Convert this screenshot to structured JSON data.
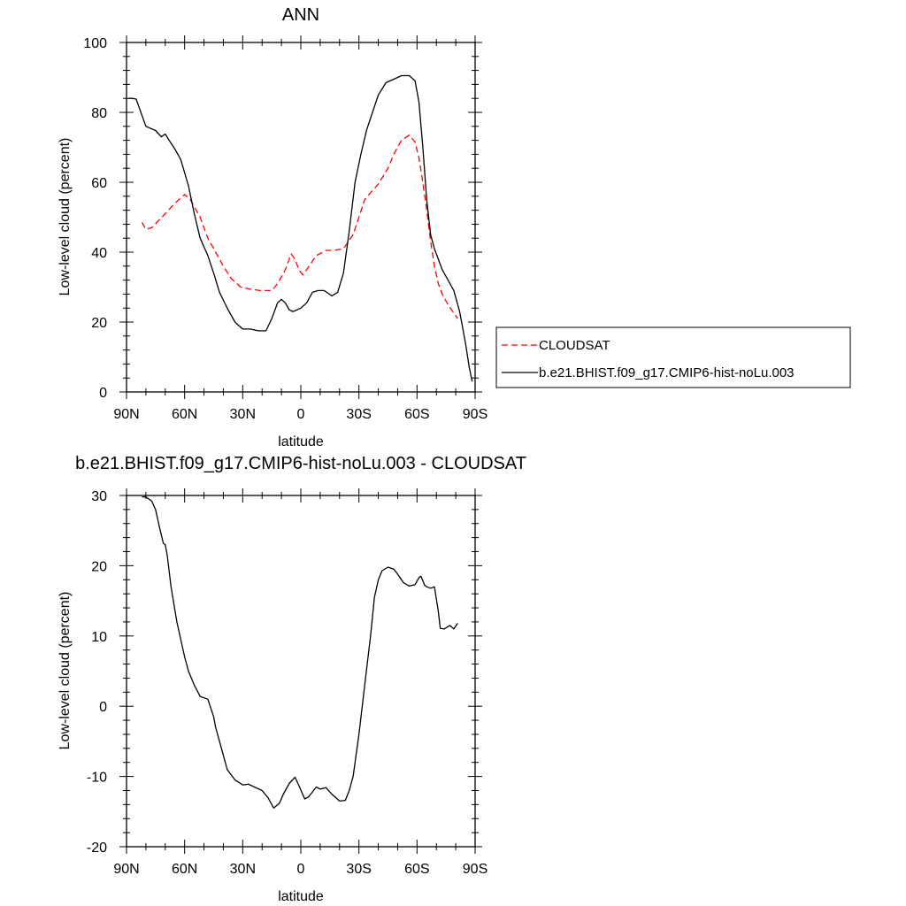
{
  "chart_data": [
    {
      "type": "line",
      "title": "ANN",
      "xlabel": "latitude",
      "ylabel": "Low-level cloud (percent)",
      "xlim": [
        90,
        -90
      ],
      "ylim": [
        0,
        100
      ],
      "x_ticks": [
        90,
        60,
        30,
        0,
        -30,
        -60,
        -90
      ],
      "x_tick_labels": [
        "90N",
        "60N",
        "30N",
        "0",
        "30S",
        "60S",
        "90S"
      ],
      "y_ticks": [
        0,
        20,
        40,
        60,
        80,
        100
      ],
      "y_tick_labels": [
        "0",
        "20",
        "40",
        "60",
        "80",
        "100"
      ],
      "legend": "outside-right",
      "series": [
        {
          "name": "CLOUDSAT",
          "color": "#ff0000",
          "style": "dashed",
          "x": [
            82,
            80,
            77,
            70,
            65,
            60,
            57,
            52,
            48,
            44,
            40,
            36,
            31,
            27,
            21,
            15,
            12,
            8,
            5,
            3,
            1,
            -1,
            -3,
            -8,
            -13,
            -17,
            -22,
            -27,
            -30,
            -33,
            -36,
            -40,
            -45,
            -48,
            -52,
            -56,
            -59,
            -61,
            -63,
            -65,
            -67,
            -69,
            -71,
            -73,
            -76,
            -81
          ],
          "y": [
            48.5,
            46.5,
            47,
            51,
            54,
            56.5,
            55,
            50,
            44,
            40,
            36,
            32.5,
            30,
            29.5,
            29,
            29,
            31,
            35,
            39.5,
            38,
            35,
            33.5,
            35,
            39,
            40.5,
            40.5,
            41,
            45,
            50,
            55,
            57,
            59.5,
            64,
            68,
            72,
            73.5,
            71.5,
            67,
            60,
            52,
            43,
            36,
            31,
            28,
            25,
            21
          ]
        },
        {
          "name": "b.e21.BHIST.f09_g17.CMIP6-hist-noLu.003",
          "color": "#000000",
          "style": "solid",
          "x": [
            89,
            87,
            85,
            80,
            75,
            72,
            70,
            68,
            65,
            62,
            58,
            55,
            52,
            48,
            45,
            42,
            38,
            34,
            30,
            26,
            22,
            18,
            15,
            12,
            10,
            8,
            6,
            4,
            2,
            0,
            -3,
            -6,
            -9,
            -12,
            -16,
            -19,
            -22,
            -25,
            -28,
            -31,
            -34,
            -37,
            -40,
            -44,
            -48,
            -52,
            -56,
            -59,
            -61,
            -63,
            -65,
            -67,
            -69,
            -71,
            -73,
            -76,
            -79,
            -82,
            -85,
            -87,
            -88.5
          ],
          "y": [
            84,
            84,
            83.8,
            76,
            74.8,
            73,
            73.8,
            72,
            69.5,
            66.5,
            59,
            51,
            44,
            39,
            34,
            28.5,
            24,
            20,
            18,
            18,
            17.5,
            17.5,
            21,
            25.5,
            26.5,
            25.5,
            23.5,
            23,
            23.5,
            24,
            25.5,
            28.5,
            29,
            29,
            27.5,
            28.5,
            34,
            46,
            60,
            68,
            75,
            80,
            85,
            88.5,
            89.5,
            90.5,
            90.5,
            89,
            83,
            70,
            55,
            45,
            41,
            38,
            35,
            32,
            29,
            23,
            14,
            7,
            3
          ]
        }
      ]
    },
    {
      "type": "line",
      "title": "b.e21.BHIST.f09_g17.CMIP6-hist-noLu.003 - CLOUDSAT",
      "xlabel": "latitude",
      "ylabel": "Low-level cloud (percent)",
      "xlim": [
        90,
        -90
      ],
      "ylim": [
        -20,
        30
      ],
      "x_ticks": [
        90,
        60,
        30,
        0,
        -30,
        -60,
        -90
      ],
      "x_tick_labels": [
        "90N",
        "60N",
        "30N",
        "0",
        "30S",
        "60S",
        "90S"
      ],
      "y_ticks": [
        -20,
        -10,
        0,
        10,
        20,
        30
      ],
      "y_tick_labels": [
        "-20",
        "-10",
        "0",
        "10",
        "20",
        "30"
      ],
      "series": [
        {
          "color": "#000000",
          "style": "solid",
          "x": [
            82,
            80,
            77,
            75,
            73,
            71,
            70,
            69,
            67,
            64,
            60,
            58,
            55,
            52,
            48,
            45,
            44,
            42,
            38,
            34,
            30,
            27,
            24,
            20,
            17,
            14,
            11,
            9,
            6,
            3,
            1,
            -2,
            -4,
            -8,
            -10,
            -13,
            -16,
            -20,
            -23,
            -25,
            -27,
            -30,
            -33,
            -36,
            -38,
            -40,
            -42,
            -45,
            -48,
            -50,
            -53,
            -56,
            -59,
            -61,
            -62,
            -64,
            -65,
            -67,
            -69,
            -71,
            -72,
            -74,
            -77,
            -79,
            -81
          ],
          "y": [
            29.8,
            29.8,
            29.2,
            28,
            25.5,
            23.2,
            23,
            21.5,
            17,
            12,
            7,
            5,
            3,
            1.4,
            1,
            -1.5,
            -3,
            -5,
            -9,
            -10.5,
            -11.2,
            -11.1,
            -11.5,
            -12,
            -13,
            -14.5,
            -13.8,
            -12.5,
            -11,
            -10.1,
            -11.3,
            -13.2,
            -12.9,
            -11.5,
            -11.8,
            -11.6,
            -12.5,
            -13.5,
            -13.4,
            -12,
            -10,
            -4,
            3,
            10,
            15.5,
            18,
            19.3,
            19.8,
            19.5,
            18.8,
            17.6,
            17.1,
            17.3,
            18.3,
            18.5,
            17.2,
            17,
            16.8,
            17,
            13.5,
            11.1,
            11,
            11.5,
            11,
            11.8
          ]
        }
      ]
    }
  ]
}
